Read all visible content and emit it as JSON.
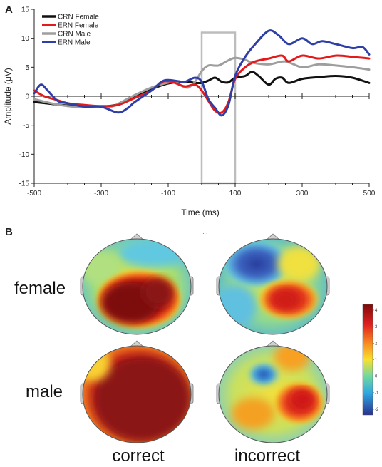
{
  "panel_a": {
    "letter": "A"
  },
  "panel_b": {
    "letter": "B"
  },
  "chart_data": {
    "type": "line",
    "title": "",
    "xlabel": "Time (ms)",
    "ylabel": "Amplitude (μV)",
    "xlim": [
      -500,
      500
    ],
    "ylim": [
      -15,
      15
    ],
    "xticks": [
      -500,
      -300,
      -100,
      100,
      300,
      500
    ],
    "yticks": [
      15,
      10,
      5,
      0,
      -5,
      -10,
      -15
    ],
    "grid": false,
    "legend_position": "top-left",
    "highlight_window": {
      "x": [
        0,
        100
      ],
      "y": [
        -15,
        11
      ],
      "color": "#bdbdbd"
    },
    "series": [
      {
        "name": "CRN Female",
        "color": "#111111",
        "points": [
          [
            -500,
            -1
          ],
          [
            -450,
            -1.3
          ],
          [
            -400,
            -1.6
          ],
          [
            -350,
            -1.8
          ],
          [
            -300,
            -1.8
          ],
          [
            -250,
            -1.4
          ],
          [
            -200,
            -0.2
          ],
          [
            -150,
            1.2
          ],
          [
            -100,
            2.2
          ],
          [
            -50,
            2.5
          ],
          [
            -20,
            2.3
          ],
          [
            0,
            2.3
          ],
          [
            20,
            2.7
          ],
          [
            40,
            3.2
          ],
          [
            60,
            2.5
          ],
          [
            80,
            2.4
          ],
          [
            100,
            3.2
          ],
          [
            130,
            3.5
          ],
          [
            150,
            4.2
          ],
          [
            170,
            3.5
          ],
          [
            200,
            2.0
          ],
          [
            220,
            3.0
          ],
          [
            240,
            3.2
          ],
          [
            260,
            2.3
          ],
          [
            300,
            3.0
          ],
          [
            350,
            3.3
          ],
          [
            400,
            3.5
          ],
          [
            450,
            3.2
          ],
          [
            500,
            2.3
          ]
        ]
      },
      {
        "name": "ERN Female",
        "color": "#e31a1c",
        "points": [
          [
            -500,
            1
          ],
          [
            -470,
            0
          ],
          [
            -440,
            -0.5
          ],
          [
            -400,
            -1.2
          ],
          [
            -350,
            -1.5
          ],
          [
            -300,
            -1.7
          ],
          [
            -250,
            -1.5
          ],
          [
            -200,
            -0.3
          ],
          [
            -150,
            1.0
          ],
          [
            -120,
            2.4
          ],
          [
            -100,
            2.6
          ],
          [
            -80,
            2.3
          ],
          [
            -50,
            1.7
          ],
          [
            -20,
            2.0
          ],
          [
            0,
            1.0
          ],
          [
            20,
            -0.8
          ],
          [
            40,
            -2.5
          ],
          [
            60,
            -2.8
          ],
          [
            80,
            -1.0
          ],
          [
            100,
            3.0
          ],
          [
            130,
            5.0
          ],
          [
            160,
            6.0
          ],
          [
            200,
            6.5
          ],
          [
            240,
            7.0
          ],
          [
            260,
            6.0
          ],
          [
            300,
            7.0
          ],
          [
            350,
            6.5
          ],
          [
            400,
            7.0
          ],
          [
            450,
            6.8
          ],
          [
            500,
            6.5
          ]
        ]
      },
      {
        "name": "CRN Male",
        "color": "#9e9e9e",
        "points": [
          [
            -500,
            -0.5
          ],
          [
            -450,
            -1.2
          ],
          [
            -400,
            -1.7
          ],
          [
            -350,
            -1.9
          ],
          [
            -300,
            -1.8
          ],
          [
            -270,
            -1.8
          ],
          [
            -250,
            -1.3
          ],
          [
            -200,
            0.2
          ],
          [
            -150,
            1.5
          ],
          [
            -110,
            2.2
          ],
          [
            -80,
            2.5
          ],
          [
            -60,
            1.8
          ],
          [
            -40,
            1.5
          ],
          [
            -20,
            2.5
          ],
          [
            0,
            4.3
          ],
          [
            20,
            5.3
          ],
          [
            50,
            5.3
          ],
          [
            80,
            6.2
          ],
          [
            100,
            6.6
          ],
          [
            130,
            6.3
          ],
          [
            150,
            5.8
          ],
          [
            200,
            5.5
          ],
          [
            250,
            6.0
          ],
          [
            300,
            5.0
          ],
          [
            350,
            5.5
          ],
          [
            400,
            5.3
          ],
          [
            450,
            5.0
          ],
          [
            500,
            4.6
          ]
        ]
      },
      {
        "name": "ERN Male",
        "color": "#2f3fa8",
        "points": [
          [
            -500,
            0.5
          ],
          [
            -480,
            2.0
          ],
          [
            -460,
            1.0
          ],
          [
            -430,
            -0.8
          ],
          [
            -400,
            -1.2
          ],
          [
            -350,
            -1.8
          ],
          [
            -300,
            -1.8
          ],
          [
            -250,
            -2.8
          ],
          [
            -220,
            -2.0
          ],
          [
            -200,
            -1.0
          ],
          [
            -150,
            1.0
          ],
          [
            -120,
            2.5
          ],
          [
            -100,
            2.8
          ],
          [
            -70,
            2.6
          ],
          [
            -50,
            2.5
          ],
          [
            -20,
            3.2
          ],
          [
            0,
            2.5
          ],
          [
            20,
            -0.5
          ],
          [
            40,
            -2.0
          ],
          [
            60,
            -3.3
          ],
          [
            80,
            -1.5
          ],
          [
            100,
            3.5
          ],
          [
            130,
            6.8
          ],
          [
            160,
            9.0
          ],
          [
            200,
            11.3
          ],
          [
            230,
            10.5
          ],
          [
            260,
            9.0
          ],
          [
            300,
            10.0
          ],
          [
            330,
            9.0
          ],
          [
            360,
            9.5
          ],
          [
            400,
            9.0
          ],
          [
            450,
            8.3
          ],
          [
            480,
            8.5
          ],
          [
            500,
            7.2
          ]
        ]
      }
    ]
  },
  "topo_maps": {
    "rows": [
      "female",
      "male"
    ],
    "columns": [
      "correct",
      "incorrect"
    ],
    "colorbar": {
      "max": 4,
      "min": -2,
      "ticks": [
        "4",
        "3",
        "2",
        "1",
        "0",
        "-1",
        "-2"
      ]
    }
  }
}
